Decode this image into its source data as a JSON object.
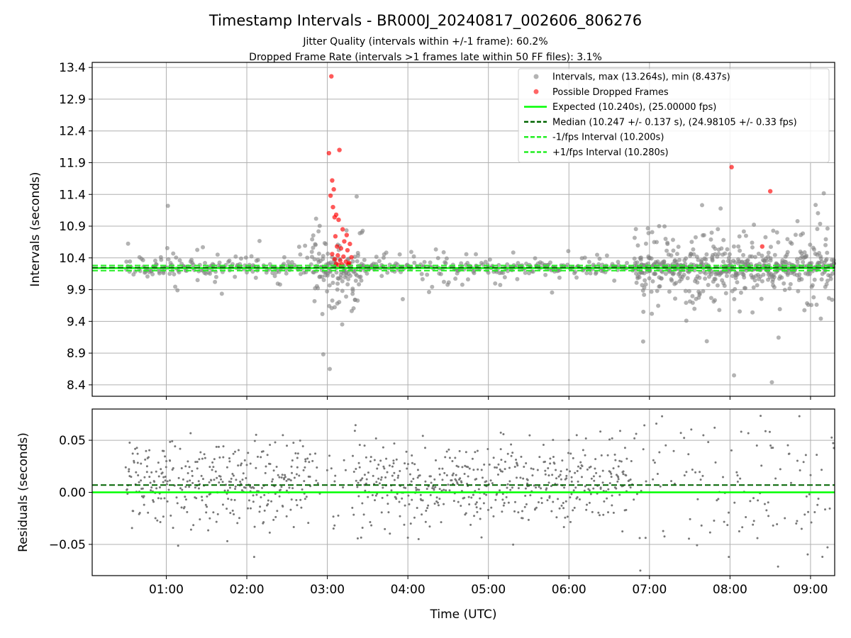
{
  "colors": {
    "intervals": "#808080",
    "dropped": "#ff0000",
    "expected": "#00ff00",
    "median": "#006400",
    "fps_band": "#22ee22",
    "residuals": "#777777",
    "grid": "#b0b0b0"
  },
  "chart_data": [
    {
      "type": "scatter",
      "title": "Timestamp Intervals - BR000J_20240817_002606_806276",
      "subtitle_lines": [
        "Jitter Quality (intervals within +/-1 frame): 60.2%",
        "Dropped Frame Rate (intervals >1 frames late within 50 FF files): 3.1%"
      ],
      "xlabel": "",
      "ylabel": "Intervals (seconds)",
      "xlim_hours": [
        0.08,
        9.3
      ],
      "ylim": [
        8.22,
        13.48
      ],
      "yticks": [
        8.4,
        8.9,
        9.4,
        9.9,
        10.4,
        10.9,
        11.4,
        11.9,
        12.4,
        12.9,
        13.4
      ],
      "ytick_labels": [
        "8.4",
        "8.9",
        "9.4",
        "9.9",
        "10.4",
        "10.9",
        "11.4",
        "11.9",
        "12.4",
        "12.9",
        "13.4"
      ],
      "grid": true,
      "legend_position": "upper-right",
      "legend": [
        {
          "label": "Intervals, max (13.264s), min (8.437s)",
          "kind": "marker",
          "color": "#808080"
        },
        {
          "label": "Possible Dropped Frames",
          "kind": "marker",
          "color": "#ff0000"
        },
        {
          "label": "Expected (10.240s), (25.00000 fps)",
          "kind": "line",
          "color": "#00ff00"
        },
        {
          "label": "Median (10.247 +/- 0.137 s), (24.98105 +/- 0.33 fps)",
          "kind": "dashed",
          "color": "#006400"
        },
        {
          "label": "-1/fps Interval (10.200s)",
          "kind": "dashed",
          "color": "#22ee22"
        },
        {
          "label": "+1/fps Interval (10.280s)",
          "kind": "dashed",
          "color": "#22ee22"
        }
      ],
      "reference_lines": {
        "expected": 10.24,
        "median": 10.247,
        "minus_fps": 10.2,
        "plus_fps": 10.28
      },
      "stats": {
        "max": 13.264,
        "min": 8.437
      },
      "dropped_points": [
        {
          "x": 3.05,
          "y": 13.26
        },
        {
          "x": 3.15,
          "y": 12.1
        },
        {
          "x": 3.02,
          "y": 12.05
        },
        {
          "x": 3.06,
          "y": 11.62
        },
        {
          "x": 3.08,
          "y": 11.48
        },
        {
          "x": 3.04,
          "y": 11.38
        },
        {
          "x": 3.07,
          "y": 11.2
        },
        {
          "x": 3.11,
          "y": 11.08
        },
        {
          "x": 3.09,
          "y": 11.04
        },
        {
          "x": 3.14,
          "y": 11.0
        },
        {
          "x": 3.19,
          "y": 10.85
        },
        {
          "x": 3.24,
          "y": 10.76
        },
        {
          "x": 3.1,
          "y": 10.74
        },
        {
          "x": 3.21,
          "y": 10.66
        },
        {
          "x": 3.28,
          "y": 10.62
        },
        {
          "x": 3.12,
          "y": 10.58
        },
        {
          "x": 3.17,
          "y": 10.55
        },
        {
          "x": 3.25,
          "y": 10.52
        },
        {
          "x": 3.06,
          "y": 10.46
        },
        {
          "x": 3.13,
          "y": 10.44
        },
        {
          "x": 3.2,
          "y": 10.42
        },
        {
          "x": 3.3,
          "y": 10.41
        },
        {
          "x": 3.09,
          "y": 10.38
        },
        {
          "x": 3.16,
          "y": 10.36
        },
        {
          "x": 3.23,
          "y": 10.34
        },
        {
          "x": 3.27,
          "y": 10.32
        },
        {
          "x": 3.11,
          "y": 10.31
        },
        {
          "x": 3.18,
          "y": 10.3
        },
        {
          "x": 3.26,
          "y": 10.3
        },
        {
          "x": 3.14,
          "y": 10.29
        },
        {
          "x": 8.02,
          "y": 11.83
        },
        {
          "x": 8.5,
          "y": 11.45
        },
        {
          "x": 8.4,
          "y": 10.58
        }
      ]
    },
    {
      "type": "scatter",
      "title": "",
      "xlabel": "Time (UTC)",
      "ylabel": "Residuals (seconds)",
      "xlim_hours": [
        0.08,
        9.3
      ],
      "ylim": [
        -0.08,
        0.08
      ],
      "yticks": [
        -0.05,
        0.0,
        0.05
      ],
      "ytick_labels": [
        "−0.05",
        "0.00",
        "0.05"
      ],
      "xticks_hours": [
        1,
        2,
        3,
        4,
        5,
        6,
        7,
        8,
        9
      ],
      "xtick_labels": [
        "01:00",
        "02:00",
        "03:00",
        "04:00",
        "05:00",
        "06:00",
        "07:00",
        "08:00",
        "09:00"
      ],
      "grid": true,
      "reference_lines": {
        "zero": 0.0,
        "median_offset": 0.007
      }
    }
  ]
}
